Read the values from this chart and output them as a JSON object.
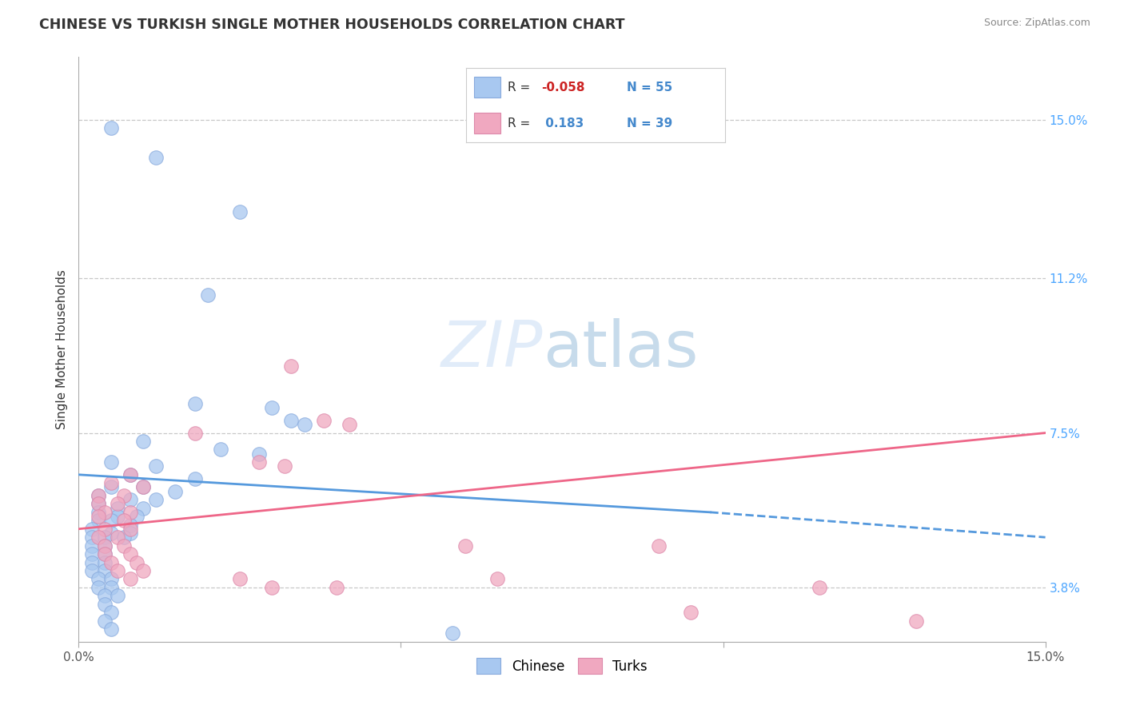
{
  "title": "CHINESE VS TURKISH SINGLE MOTHER HOUSEHOLDS CORRELATION CHART",
  "source": "Source: ZipAtlas.com",
  "ylabel": "Single Mother Households",
  "xlim": [
    0.0,
    0.15
  ],
  "ylim": [
    0.025,
    0.165
  ],
  "ytick_labels": [
    "3.8%",
    "7.5%",
    "11.2%",
    "15.0%"
  ],
  "ytick_positions": [
    0.038,
    0.075,
    0.112,
    0.15
  ],
  "grid_color": "#c8c8c8",
  "background_color": "#ffffff",
  "legend_r_chinese": "-0.058",
  "legend_n_chinese": "55",
  "legend_r_turks": " 0.183",
  "legend_n_turks": "39",
  "chinese_color": "#a8c8f0",
  "turks_color": "#f0a8c0",
  "chinese_line_color": "#5599dd",
  "turks_line_color": "#ee6688",
  "chinese_scatter": [
    [
      0.005,
      0.148
    ],
    [
      0.012,
      0.141
    ],
    [
      0.025,
      0.128
    ],
    [
      0.02,
      0.108
    ],
    [
      0.018,
      0.082
    ],
    [
      0.03,
      0.081
    ],
    [
      0.033,
      0.078
    ],
    [
      0.035,
      0.077
    ],
    [
      0.01,
      0.073
    ],
    [
      0.022,
      0.071
    ],
    [
      0.028,
      0.07
    ],
    [
      0.005,
      0.068
    ],
    [
      0.012,
      0.067
    ],
    [
      0.008,
      0.065
    ],
    [
      0.018,
      0.064
    ],
    [
      0.005,
      0.062
    ],
    [
      0.01,
      0.062
    ],
    [
      0.015,
      0.061
    ],
    [
      0.003,
      0.06
    ],
    [
      0.008,
      0.059
    ],
    [
      0.012,
      0.059
    ],
    [
      0.003,
      0.058
    ],
    [
      0.006,
      0.057
    ],
    [
      0.01,
      0.057
    ],
    [
      0.003,
      0.056
    ],
    [
      0.006,
      0.055
    ],
    [
      0.009,
      0.055
    ],
    [
      0.003,
      0.054
    ],
    [
      0.005,
      0.054
    ],
    [
      0.008,
      0.053
    ],
    [
      0.002,
      0.052
    ],
    [
      0.005,
      0.051
    ],
    [
      0.008,
      0.051
    ],
    [
      0.002,
      0.05
    ],
    [
      0.004,
      0.05
    ],
    [
      0.007,
      0.05
    ],
    [
      0.002,
      0.048
    ],
    [
      0.004,
      0.048
    ],
    [
      0.002,
      0.046
    ],
    [
      0.004,
      0.046
    ],
    [
      0.002,
      0.044
    ],
    [
      0.004,
      0.044
    ],
    [
      0.002,
      0.042
    ],
    [
      0.004,
      0.042
    ],
    [
      0.003,
      0.04
    ],
    [
      0.005,
      0.04
    ],
    [
      0.003,
      0.038
    ],
    [
      0.005,
      0.038
    ],
    [
      0.004,
      0.036
    ],
    [
      0.006,
      0.036
    ],
    [
      0.004,
      0.034
    ],
    [
      0.005,
      0.032
    ],
    [
      0.004,
      0.03
    ],
    [
      0.005,
      0.028
    ],
    [
      0.058,
      0.027
    ]
  ],
  "turks_scatter": [
    [
      0.033,
      0.091
    ],
    [
      0.038,
      0.078
    ],
    [
      0.042,
      0.077
    ],
    [
      0.018,
      0.075
    ],
    [
      0.028,
      0.068
    ],
    [
      0.032,
      0.067
    ],
    [
      0.008,
      0.065
    ],
    [
      0.005,
      0.063
    ],
    [
      0.01,
      0.062
    ],
    [
      0.003,
      0.06
    ],
    [
      0.007,
      0.06
    ],
    [
      0.003,
      0.058
    ],
    [
      0.006,
      0.058
    ],
    [
      0.004,
      0.056
    ],
    [
      0.008,
      0.056
    ],
    [
      0.003,
      0.055
    ],
    [
      0.007,
      0.054
    ],
    [
      0.004,
      0.052
    ],
    [
      0.008,
      0.052
    ],
    [
      0.003,
      0.05
    ],
    [
      0.006,
      0.05
    ],
    [
      0.004,
      0.048
    ],
    [
      0.007,
      0.048
    ],
    [
      0.004,
      0.046
    ],
    [
      0.008,
      0.046
    ],
    [
      0.005,
      0.044
    ],
    [
      0.009,
      0.044
    ],
    [
      0.006,
      0.042
    ],
    [
      0.01,
      0.042
    ],
    [
      0.008,
      0.04
    ],
    [
      0.025,
      0.04
    ],
    [
      0.03,
      0.038
    ],
    [
      0.04,
      0.038
    ],
    [
      0.06,
      0.048
    ],
    [
      0.065,
      0.04
    ],
    [
      0.09,
      0.048
    ],
    [
      0.095,
      0.032
    ],
    [
      0.115,
      0.038
    ],
    [
      0.13,
      0.03
    ]
  ],
  "chinese_line": {
    "x0": 0.0,
    "x1_solid": 0.098,
    "x1_dash": 0.15,
    "y0": 0.065,
    "y_solid_end": 0.056,
    "y_dash_end": 0.05
  },
  "turks_line": {
    "x0": 0.0,
    "x1": 0.15,
    "y0": 0.052,
    "y1": 0.075
  }
}
